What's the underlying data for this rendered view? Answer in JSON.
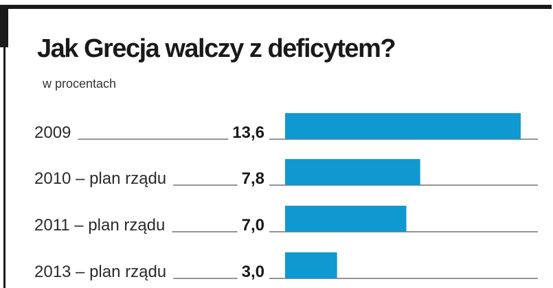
{
  "chart_data": {
    "type": "bar",
    "orientation": "horizontal",
    "title": "Jak Grecja walczy z deficytem?",
    "subtitle": "w procentach",
    "categories": [
      "2009",
      "2010 – plan rządu",
      "2011 – plan rządu",
      "2013 – plan rządu"
    ],
    "values": [
      13.6,
      7.8,
      7.0,
      3.0
    ],
    "value_labels": [
      "13,6",
      "7,8",
      "7,0",
      "3,0"
    ],
    "xlim": [
      0,
      13.6
    ],
    "grid": false,
    "legend": "none"
  },
  "colors": {
    "bar": "#0f99d0",
    "frame": "#1a1a1a",
    "rule": "#555555"
  }
}
